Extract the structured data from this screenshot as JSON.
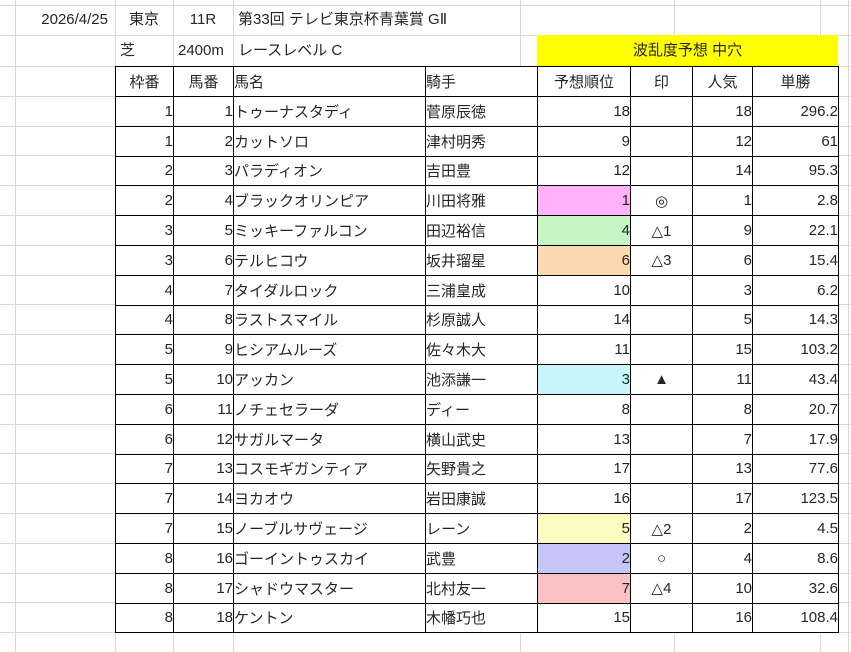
{
  "meta": {
    "date": "2026/4/25",
    "track": "東京",
    "race_no": "11R",
    "race_title": "第33回 テレビ東京杯青葉賞 GⅡ",
    "surface": "芝",
    "distance": "2400m",
    "race_level": "レースレベル C",
    "banner_text": "波乱度予想 中穴",
    "banner_color": "#ffff00"
  },
  "headers": {
    "waku": "枠番",
    "uma": "馬番",
    "name": "馬名",
    "jockey": "騎手",
    "rank": "予想順位",
    "mark": "印",
    "pop": "人気",
    "odds": "単勝"
  },
  "rank_color_legend": {
    "1": "#ffb1f9",
    "2": "#c6c6f9",
    "3": "#c6f6f9",
    "4": "#c6f6c6",
    "5": "#fbfbc2",
    "6": "#fbd8ae",
    "7": "#fbc2c6"
  },
  "rows": [
    {
      "waku": "1",
      "uma": "1",
      "name": "トゥーナスタディ",
      "jockey": "菅原辰徳",
      "rank": "18",
      "mark": "",
      "pop": "18",
      "odds": "296.2",
      "rank_bg": ""
    },
    {
      "waku": "1",
      "uma": "2",
      "name": "カットソロ",
      "jockey": "津村明秀",
      "rank": "9",
      "mark": "",
      "pop": "12",
      "odds": "61",
      "rank_bg": ""
    },
    {
      "waku": "2",
      "uma": "3",
      "name": "パラディオン",
      "jockey": "吉田豊",
      "rank": "12",
      "mark": "",
      "pop": "14",
      "odds": "95.3",
      "rank_bg": ""
    },
    {
      "waku": "2",
      "uma": "4",
      "name": "ブラックオリンピア",
      "jockey": "川田将雅",
      "rank": "1",
      "mark": "◎",
      "pop": "1",
      "odds": "2.8",
      "rank_bg": "#ffb1f9"
    },
    {
      "waku": "3",
      "uma": "5",
      "name": "ミッキーファルコン",
      "jockey": "田辺裕信",
      "rank": "4",
      "mark": "△1",
      "pop": "9",
      "odds": "22.1",
      "rank_bg": "#c6f6c6"
    },
    {
      "waku": "3",
      "uma": "6",
      "name": "テルヒコウ",
      "jockey": "坂井瑠星",
      "rank": "6",
      "mark": "△3",
      "pop": "6",
      "odds": "15.4",
      "rank_bg": "#fbd8ae"
    },
    {
      "waku": "4",
      "uma": "7",
      "name": "タイダルロック",
      "jockey": "三浦皇成",
      "rank": "10",
      "mark": "",
      "pop": "3",
      "odds": "6.2",
      "rank_bg": ""
    },
    {
      "waku": "4",
      "uma": "8",
      "name": "ラストスマイル",
      "jockey": "杉原誠人",
      "rank": "14",
      "mark": "",
      "pop": "5",
      "odds": "14.3",
      "rank_bg": ""
    },
    {
      "waku": "5",
      "uma": "9",
      "name": "ヒシアムルーズ",
      "jockey": "佐々木大",
      "rank": "11",
      "mark": "",
      "pop": "15",
      "odds": "103.2",
      "rank_bg": ""
    },
    {
      "waku": "5",
      "uma": "10",
      "name": "アッカン",
      "jockey": "池添謙一",
      "rank": "3",
      "mark": "▲",
      "pop": "11",
      "odds": "43.4",
      "rank_bg": "#c6f6f9"
    },
    {
      "waku": "6",
      "uma": "11",
      "name": "ノチェセラーダ",
      "jockey": "ディー",
      "rank": "8",
      "mark": "",
      "pop": "8",
      "odds": "20.7",
      "rank_bg": ""
    },
    {
      "waku": "6",
      "uma": "12",
      "name": "サガルマータ",
      "jockey": "横山武史",
      "rank": "13",
      "mark": "",
      "pop": "7",
      "odds": "17.9",
      "rank_bg": ""
    },
    {
      "waku": "7",
      "uma": "13",
      "name": "コスモギガンティア",
      "jockey": "矢野貴之",
      "rank": "17",
      "mark": "",
      "pop": "13",
      "odds": "77.6",
      "rank_bg": ""
    },
    {
      "waku": "7",
      "uma": "14",
      "name": "ヨカオウ",
      "jockey": "岩田康誠",
      "rank": "16",
      "mark": "",
      "pop": "17",
      "odds": "123.5",
      "rank_bg": ""
    },
    {
      "waku": "7",
      "uma": "15",
      "name": "ノーブルサヴェージ",
      "jockey": "レーン",
      "rank": "5",
      "mark": "△2",
      "pop": "2",
      "odds": "4.5",
      "rank_bg": "#fbfbc2"
    },
    {
      "waku": "8",
      "uma": "16",
      "name": "ゴーイントゥスカイ",
      "jockey": "武豊",
      "rank": "2",
      "mark": "○",
      "pop": "4",
      "odds": "8.6",
      "rank_bg": "#c6c6f9"
    },
    {
      "waku": "8",
      "uma": "17",
      "name": "シャドウマスター",
      "jockey": "北村友一",
      "rank": "7",
      "mark": "△4",
      "pop": "10",
      "odds": "32.6",
      "rank_bg": "#fbc2c6"
    },
    {
      "waku": "8",
      "uma": "18",
      "name": "ケントン",
      "jockey": "木幡巧也",
      "rank": "15",
      "mark": "",
      "pop": "16",
      "odds": "108.4",
      "rank_bg": ""
    }
  ]
}
